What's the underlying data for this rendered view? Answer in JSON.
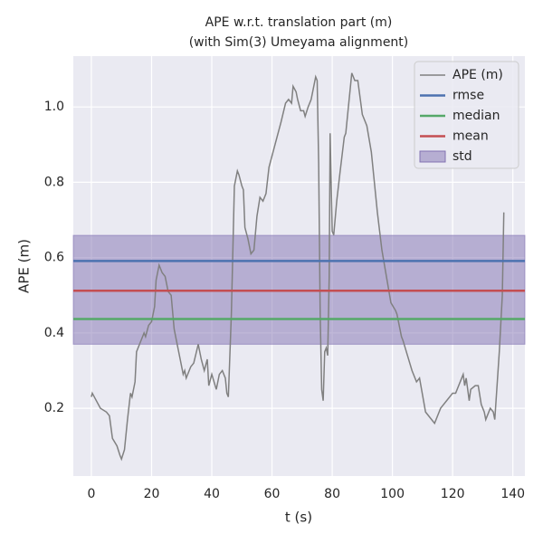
{
  "chart_data": {
    "type": "line",
    "title": [
      "APE w.r.t. translation part (m)",
      "(with Sim(3) Umeyama alignment)"
    ],
    "xlabel": "t (s)",
    "ylabel": "APE (m)",
    "xlim": [
      -6,
      144
    ],
    "ylim": [
      0.02,
      1.135
    ],
    "xticks": [
      0,
      20,
      40,
      60,
      80,
      100,
      120,
      140
    ],
    "yticks": [
      0.2,
      0.4,
      0.6,
      0.8,
      {
        "value": 1.0,
        "label": "1.0"
      }
    ],
    "grid": true,
    "legend": "upper right",
    "series": [
      {
        "name": "APE (m)",
        "color": "#808080",
        "x": [
          0,
          0.3,
          3,
          5,
          6,
          7,
          8.5,
          9.5,
          10,
          11,
          12,
          13,
          13.5,
          14.5,
          15,
          16,
          17.5,
          18,
          19,
          20,
          21,
          21.5,
          22.5,
          23.5,
          24.5,
          25.5,
          26.5,
          27.5,
          28.5,
          29.5,
          30.5,
          31,
          31.5,
          33,
          34,
          35.5,
          36.5,
          37.5,
          38.5,
          39,
          40,
          41.5,
          42.5,
          43.5,
          44.5,
          45,
          45.5,
          46.5,
          47.5,
          48.5,
          49,
          50,
          50.5,
          51,
          52,
          53,
          54,
          55,
          56,
          57,
          58,
          59,
          61,
          63,
          64.5,
          65.5,
          66.5,
          67,
          68,
          68.5,
          69.5,
          70.5,
          71,
          72,
          73,
          74.5,
          75,
          75.5,
          76,
          76.5,
          77,
          77.5,
          78,
          78.5,
          79,
          79.3,
          80,
          80.5,
          81.5,
          82.5,
          84,
          84.5,
          86,
          86.5,
          87.5,
          88.5,
          90,
          91.5,
          93,
          95,
          96.5,
          98,
          99.5,
          101,
          101.5,
          103,
          103.5,
          105,
          106.5,
          108,
          109,
          111,
          114,
          116,
          118,
          120,
          121,
          123,
          123.5,
          124,
          124.5,
          125.5,
          126,
          127.5,
          128.5,
          129.5,
          130.5,
          131,
          131.5,
          132.5,
          133.5,
          134,
          135.5,
          136.5,
          137
        ],
        "values": [
          0.23,
          0.24,
          0.2,
          0.19,
          0.18,
          0.12,
          0.1,
          0.075,
          0.065,
          0.09,
          0.17,
          0.24,
          0.23,
          0.27,
          0.35,
          0.37,
          0.4,
          0.39,
          0.42,
          0.43,
          0.47,
          0.54,
          0.58,
          0.56,
          0.55,
          0.51,
          0.5,
          0.41,
          0.37,
          0.33,
          0.29,
          0.3,
          0.28,
          0.31,
          0.32,
          0.37,
          0.33,
          0.3,
          0.33,
          0.26,
          0.29,
          0.25,
          0.29,
          0.3,
          0.28,
          0.24,
          0.23,
          0.45,
          0.79,
          0.83,
          0.82,
          0.79,
          0.78,
          0.68,
          0.65,
          0.61,
          0.62,
          0.71,
          0.76,
          0.75,
          0.77,
          0.84,
          0.9,
          0.96,
          1.01,
          1.02,
          1.01,
          1.055,
          1.04,
          1.02,
          0.99,
          0.99,
          0.975,
          1.0,
          1.02,
          1.08,
          1.07,
          0.85,
          0.45,
          0.25,
          0.22,
          0.35,
          0.36,
          0.34,
          0.55,
          0.93,
          0.67,
          0.66,
          0.75,
          0.82,
          0.92,
          0.93,
          1.05,
          1.09,
          1.07,
          1.07,
          0.98,
          0.95,
          0.88,
          0.72,
          0.62,
          0.55,
          0.48,
          0.46,
          0.45,
          0.39,
          0.38,
          0.34,
          0.3,
          0.27,
          0.28,
          0.19,
          0.16,
          0.2,
          0.22,
          0.24,
          0.24,
          0.28,
          0.29,
          0.26,
          0.28,
          0.22,
          0.25,
          0.26,
          0.26,
          0.21,
          0.19,
          0.17,
          0.18,
          0.2,
          0.19,
          0.17,
          0.35,
          0.5,
          0.72
        ]
      }
    ],
    "hlines": [
      {
        "name": "rmse",
        "color": "#4c72b0",
        "value": 0.591
      },
      {
        "name": "median",
        "color": "#55a868",
        "value": 0.437
      },
      {
        "name": "mean",
        "color": "#c44e52",
        "value": 0.512
      }
    ],
    "band": {
      "name": "std",
      "color": "#8172b2",
      "values": [
        0.37,
        0.659
      ]
    }
  }
}
